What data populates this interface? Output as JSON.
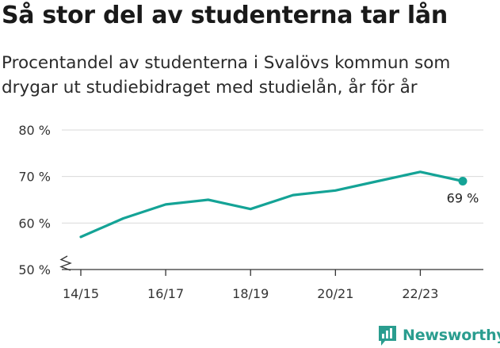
{
  "header": {
    "title": "Så stor del av studenterna tar lån",
    "subtitle": "Procentandel av studenterna i Svalövs kommun som drygar ut studiebidraget med studielån, år för år"
  },
  "brand": {
    "name": "Newsworthy",
    "icon": "bar-chart-badge-icon",
    "color": "#2a9d8f"
  },
  "chart_data": {
    "type": "line",
    "x": [
      "14/15",
      "15/16",
      "16/17",
      "17/18",
      "18/19",
      "19/20",
      "20/21",
      "21/22",
      "22/23",
      "23/24"
    ],
    "xticks": [
      "14/15",
      "16/17",
      "18/19",
      "20/21",
      "22/23"
    ],
    "series": [
      {
        "values": [
          57,
          61,
          64,
          65,
          63,
          66,
          67,
          69,
          71,
          69
        ],
        "color": "#14a396"
      }
    ],
    "yticks": [
      "80 %",
      "70 %",
      "60 %",
      "50 %"
    ],
    "ytick_values": [
      80,
      70,
      60,
      50
    ],
    "ylim": [
      50,
      80
    ],
    "axis_break": true,
    "grid": true,
    "end_label": "69 %"
  }
}
